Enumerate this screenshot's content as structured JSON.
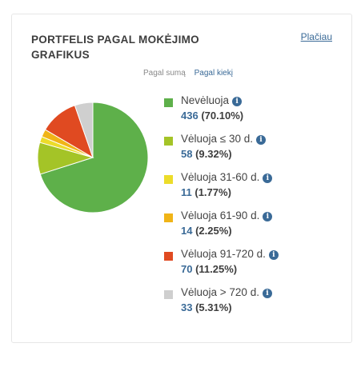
{
  "widget": {
    "title": "PORTFELIS PAGAL MOKĖJIMO GRAFIKUS",
    "more_link": "Plačiau",
    "toggles": [
      {
        "label": "Pagal sumą",
        "active": false
      },
      {
        "label": "Pagal kiekį",
        "active": true
      }
    ]
  },
  "chart_data": {
    "type": "pie",
    "title": "",
    "categories": [
      "Nevėluoja",
      "Vėluoja ≤ 30 d.",
      "Vėluoja 31-60 d.",
      "Vėluoja 61-90 d.",
      "Vėluoja 91-720 d.",
      "Vėluoja > 720 d."
    ],
    "values": [
      436,
      58,
      11,
      14,
      70,
      33
    ],
    "percent_labels": [
      "(70.10%)",
      "(9.32%)",
      "(1.77%)",
      "(2.25%)",
      "(11.25%)",
      "(5.31%)"
    ],
    "colors": [
      "#5eb04a",
      "#a4c427",
      "#ecdc2a",
      "#f0b417",
      "#e04a21",
      "#cfcfcf"
    ],
    "legend_position": "right"
  }
}
